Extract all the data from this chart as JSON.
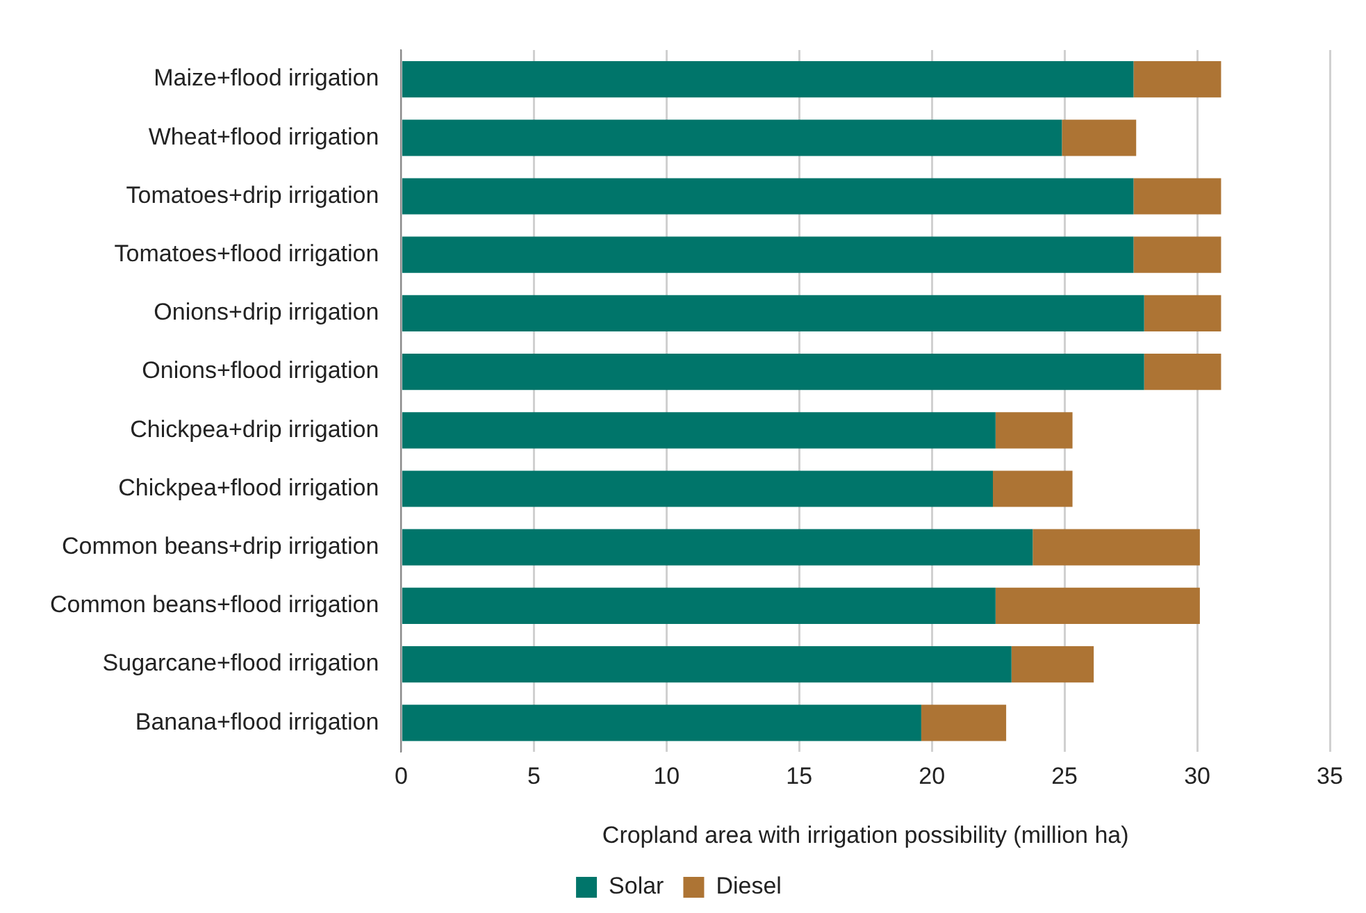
{
  "chart_data": {
    "type": "bar",
    "orientation": "horizontal",
    "stacked": true,
    "categories": [
      "Maize+flood irrigation",
      "Wheat+flood irrigation",
      "Tomatoes+drip irrigation",
      "Tomatoes+flood irrigation",
      "Onions+drip irrigation",
      "Onions+flood irrigation",
      "Chickpea+drip irrigation",
      "Chickpea+flood irrigation",
      "Common beans+drip irrigation",
      "Common beans+flood irrigation",
      "Sugarcane+flood irrigation",
      "Banana+flood irrigation"
    ],
    "series": [
      {
        "name": "Solar",
        "color": "#00756a",
        "values": [
          27.6,
          24.9,
          27.6,
          27.6,
          28.0,
          28.0,
          22.4,
          22.3,
          23.8,
          22.4,
          23.0,
          19.6
        ]
      },
      {
        "name": "Diesel",
        "color": "#ad7434",
        "values": [
          3.3,
          2.8,
          3.3,
          3.3,
          2.9,
          2.9,
          2.9,
          3.0,
          6.3,
          7.7,
          3.1,
          3.2
        ]
      }
    ],
    "xlim": [
      0,
      35
    ],
    "xticks": [
      0,
      5,
      10,
      15,
      20,
      25,
      30,
      35
    ],
    "xlabel": "Cropland area with irrigation possibility (million ha)",
    "grid": "x",
    "legend": "bottom"
  }
}
